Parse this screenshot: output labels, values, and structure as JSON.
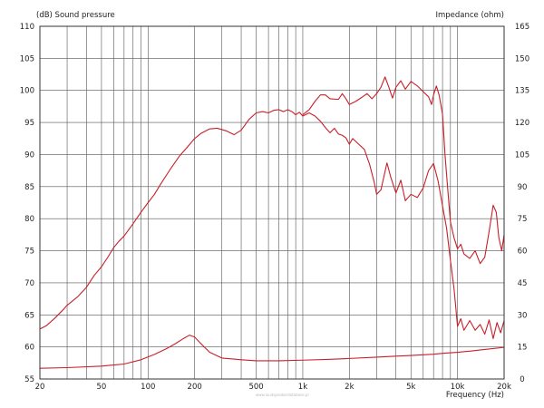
{
  "chart_data": {
    "type": "line",
    "y_left_label": "(dB)  Sound pressure",
    "y_right_label": "Impedance  (ohm)",
    "x_label": "Frequency  (Hz)",
    "watermark": "www.loudspeakerdatabase.pl",
    "x_scale": "log",
    "x_range": [
      20,
      20000
    ],
    "y_left_range": [
      55,
      110
    ],
    "y_right_range": [
      0,
      165
    ],
    "grid": true,
    "x_ticks": [
      {
        "value": 20,
        "label": "20"
      },
      {
        "value": 50,
        "label": "50"
      },
      {
        "value": 100,
        "label": "100"
      },
      {
        "value": 200,
        "label": "200"
      },
      {
        "value": 500,
        "label": "500"
      },
      {
        "value": 1000,
        "label": "1k"
      },
      {
        "value": 2000,
        "label": "2k"
      },
      {
        "value": 5000,
        "label": "5k"
      },
      {
        "value": 10000,
        "label": "10k"
      },
      {
        "value": 20000,
        "label": "20k"
      }
    ],
    "y_left_ticks": [
      {
        "value": 55,
        "label": "55"
      },
      {
        "value": 60,
        "label": "60"
      },
      {
        "value": 65,
        "label": "65"
      },
      {
        "value": 70,
        "label": "70"
      },
      {
        "value": 75,
        "label": "75"
      },
      {
        "value": 80,
        "label": "80"
      },
      {
        "value": 85,
        "label": "85"
      },
      {
        "value": 90,
        "label": "90"
      },
      {
        "value": 95,
        "label": "95"
      },
      {
        "value": 100,
        "label": "100"
      },
      {
        "value": 105,
        "label": "105"
      },
      {
        "value": 110,
        "label": "110"
      }
    ],
    "y_right_ticks": [
      {
        "value": 0,
        "label": "0"
      },
      {
        "value": 15,
        "label": "15"
      },
      {
        "value": 30,
        "label": "30"
      },
      {
        "value": 45,
        "label": "45"
      },
      {
        "value": 60,
        "label": "60"
      },
      {
        "value": 75,
        "label": "75"
      },
      {
        "value": 90,
        "label": "90"
      },
      {
        "value": 105,
        "label": "105"
      },
      {
        "value": 120,
        "label": "120"
      },
      {
        "value": 135,
        "label": "135"
      },
      {
        "value": 150,
        "label": "150"
      },
      {
        "value": 165,
        "label": "165"
      }
    ],
    "line_color": "#c8202a",
    "series": [
      {
        "axis": "left",
        "points": [
          [
            20,
            62.8
          ],
          [
            22,
            63.3
          ],
          [
            25,
            64.5
          ],
          [
            28,
            65.7
          ],
          [
            30,
            66.5
          ],
          [
            35,
            67.8
          ],
          [
            40,
            69.3
          ],
          [
            45,
            71.2
          ],
          [
            50,
            72.5
          ],
          [
            55,
            74.0
          ],
          [
            60,
            75.5
          ],
          [
            65,
            76.5
          ],
          [
            70,
            77.3
          ],
          [
            80,
            79.2
          ],
          [
            90,
            81.0
          ],
          [
            100,
            82.5
          ],
          [
            110,
            83.8
          ],
          [
            120,
            85.3
          ],
          [
            140,
            87.8
          ],
          [
            160,
            89.8
          ],
          [
            180,
            91.2
          ],
          [
            200,
            92.5
          ],
          [
            220,
            93.3
          ],
          [
            250,
            94.0
          ],
          [
            280,
            94.1
          ],
          [
            320,
            93.7
          ],
          [
            360,
            93.1
          ],
          [
            400,
            93.8
          ],
          [
            450,
            95.5
          ],
          [
            500,
            96.5
          ],
          [
            550,
            96.7
          ],
          [
            600,
            96.5
          ],
          [
            650,
            96.9
          ],
          [
            700,
            97.0
          ],
          [
            750,
            96.7
          ],
          [
            800,
            97.0
          ],
          [
            850,
            96.7
          ],
          [
            900,
            96.2
          ],
          [
            950,
            96.6
          ],
          [
            1000,
            96.0
          ],
          [
            1100,
            96.5
          ],
          [
            1200,
            96.0
          ],
          [
            1300,
            95.2
          ],
          [
            1400,
            94.2
          ],
          [
            1500,
            93.4
          ],
          [
            1600,
            94.1
          ],
          [
            1700,
            93.2
          ],
          [
            1800,
            93.0
          ],
          [
            1900,
            92.6
          ],
          [
            2000,
            91.6
          ],
          [
            2100,
            92.5
          ],
          [
            2300,
            91.6
          ],
          [
            2500,
            90.8
          ],
          [
            2700,
            88.5
          ],
          [
            2900,
            85.6
          ],
          [
            3000,
            83.8
          ],
          [
            3200,
            84.5
          ],
          [
            3500,
            88.7
          ],
          [
            3700,
            86.5
          ],
          [
            4000,
            84.0
          ],
          [
            4300,
            86.0
          ],
          [
            4600,
            82.8
          ],
          [
            5000,
            83.8
          ],
          [
            5500,
            83.3
          ],
          [
            6000,
            84.8
          ],
          [
            6500,
            87.5
          ],
          [
            7000,
            88.6
          ],
          [
            7500,
            85.8
          ],
          [
            8000,
            82.0
          ],
          [
            8500,
            78.5
          ],
          [
            9000,
            73.5
          ],
          [
            9500,
            69.0
          ],
          [
            10000,
            63.2
          ],
          [
            10500,
            64.4
          ],
          [
            11000,
            62.6
          ],
          [
            12000,
            64.1
          ],
          [
            13000,
            62.6
          ],
          [
            14000,
            63.5
          ],
          [
            15000,
            62.0
          ],
          [
            16000,
            64.2
          ],
          [
            17000,
            61.3
          ],
          [
            18000,
            63.8
          ],
          [
            19000,
            62.2
          ],
          [
            20000,
            64.1
          ]
        ]
      },
      {
        "axis": "left",
        "points": [
          [
            1000,
            96.2
          ],
          [
            1100,
            97.0
          ],
          [
            1200,
            98.3
          ],
          [
            1300,
            99.3
          ],
          [
            1400,
            99.3
          ],
          [
            1500,
            98.7
          ],
          [
            1700,
            98.6
          ],
          [
            1800,
            99.5
          ],
          [
            1900,
            98.7
          ],
          [
            2000,
            97.8
          ],
          [
            2200,
            98.3
          ],
          [
            2400,
            98.9
          ],
          [
            2600,
            99.5
          ],
          [
            2800,
            98.7
          ],
          [
            3000,
            99.5
          ],
          [
            3200,
            100.5
          ],
          [
            3400,
            102.1
          ],
          [
            3600,
            100.5
          ],
          [
            3800,
            98.8
          ],
          [
            4000,
            100.5
          ],
          [
            4300,
            101.5
          ],
          [
            4600,
            100.2
          ],
          [
            5000,
            101.4
          ],
          [
            5500,
            100.7
          ],
          [
            6000,
            99.8
          ],
          [
            6500,
            99.0
          ],
          [
            6800,
            97.8
          ],
          [
            7000,
            99.3
          ],
          [
            7300,
            100.7
          ],
          [
            7600,
            99.3
          ],
          [
            8000,
            96.3
          ],
          [
            8300,
            90.0
          ],
          [
            8700,
            83.8
          ],
          [
            9000,
            79.5
          ],
          [
            9500,
            77.0
          ],
          [
            10000,
            75.3
          ],
          [
            10500,
            76.0
          ],
          [
            11000,
            74.5
          ],
          [
            12000,
            73.8
          ],
          [
            13000,
            75.0
          ],
          [
            14000,
            73.0
          ],
          [
            15000,
            74.0
          ],
          [
            16000,
            78.0
          ],
          [
            17000,
            82.1
          ],
          [
            17800,
            81.0
          ],
          [
            18500,
            77.0
          ],
          [
            19300,
            75.0
          ],
          [
            20000,
            77.5
          ]
        ]
      },
      {
        "axis": "right",
        "points": [
          [
            20,
            5.0
          ],
          [
            30,
            5.3
          ],
          [
            50,
            6.0
          ],
          [
            70,
            7.0
          ],
          [
            90,
            9.0
          ],
          [
            110,
            11.5
          ],
          [
            130,
            14.0
          ],
          [
            150,
            16.5
          ],
          [
            170,
            19.0
          ],
          [
            185,
            20.5
          ],
          [
            200,
            19.6
          ],
          [
            220,
            16.5
          ],
          [
            250,
            12.5
          ],
          [
            300,
            9.8
          ],
          [
            400,
            9.0
          ],
          [
            500,
            8.5
          ],
          [
            700,
            8.5
          ],
          [
            1000,
            8.8
          ],
          [
            1500,
            9.2
          ],
          [
            2000,
            9.6
          ],
          [
            3000,
            10.2
          ],
          [
            4000,
            10.7
          ],
          [
            5000,
            11.0
          ],
          [
            6000,
            11.3
          ],
          [
            7000,
            11.6
          ],
          [
            8000,
            12.0
          ],
          [
            10000,
            12.5
          ],
          [
            12000,
            13.0
          ],
          [
            15000,
            13.8
          ],
          [
            20000,
            14.8
          ]
        ]
      }
    ]
  }
}
